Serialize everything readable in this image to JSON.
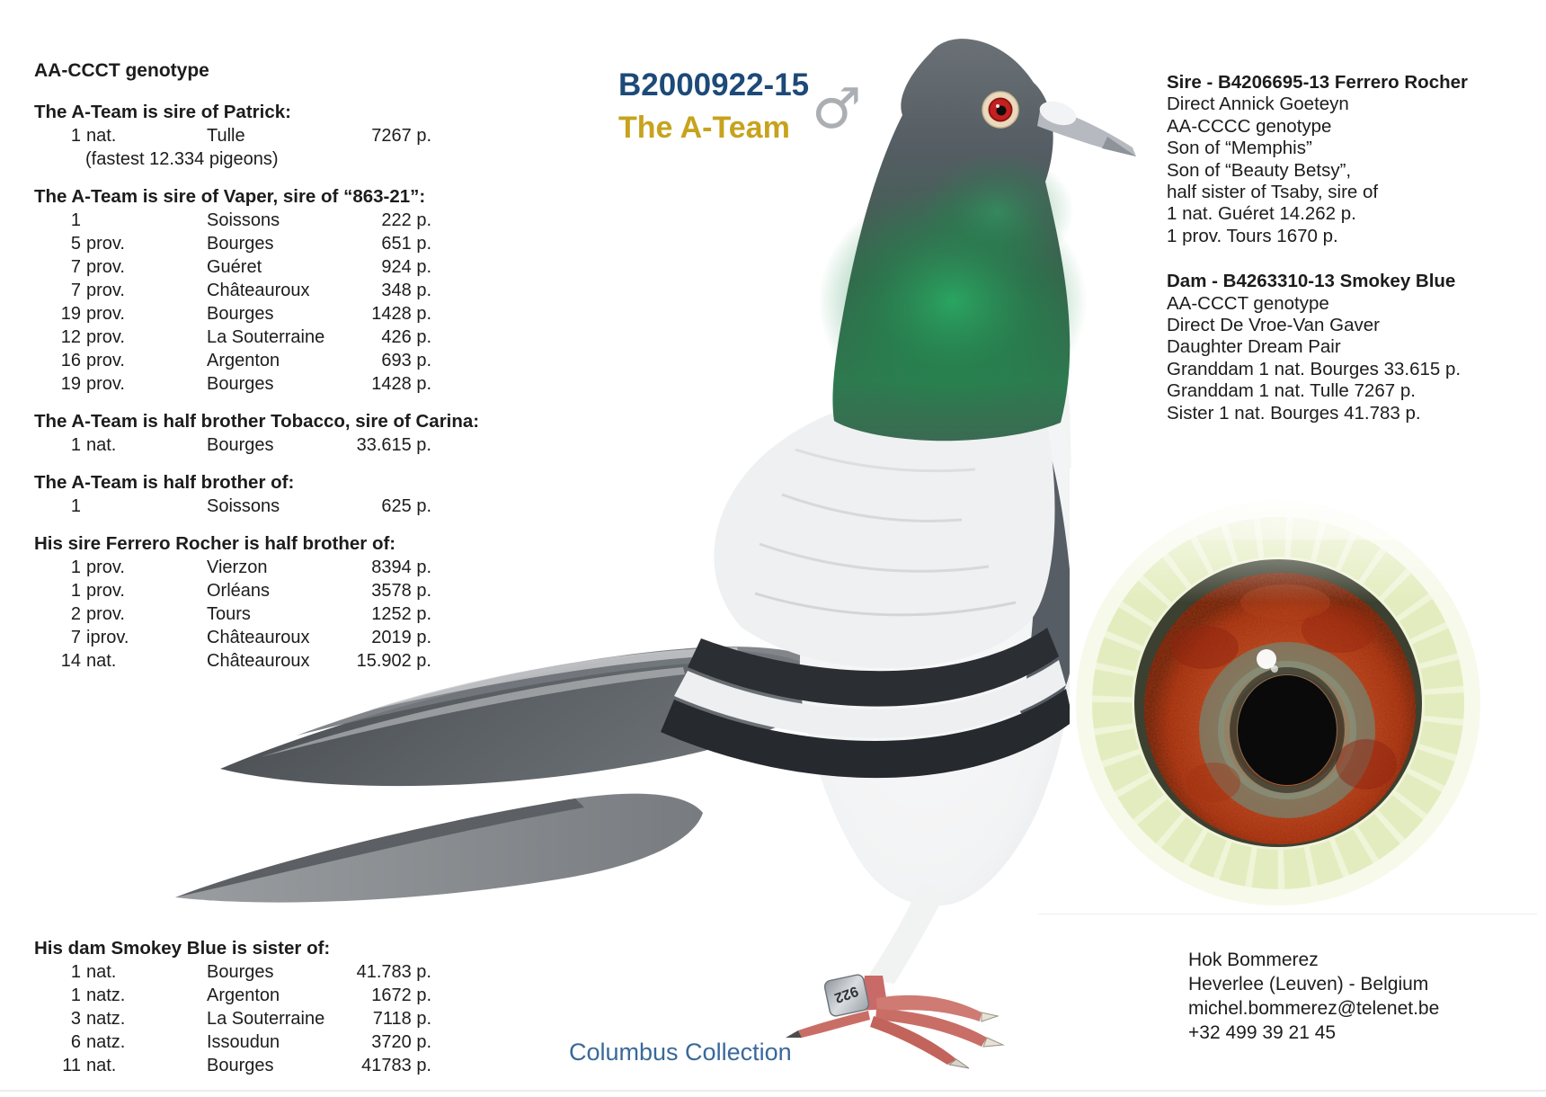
{
  "page": {
    "ring_number": "B2000922-15",
    "name": "The A-Team",
    "sex_symbol": "♂",
    "watermark": "Columbus Collection",
    "colors": {
      "ring_number": "#1d4a78",
      "name": "#c7a31d",
      "watermark": "#38699b",
      "body_text": "#1c1c1c"
    }
  },
  "left_column": {
    "genotype": "AA-CCCT genotype",
    "sections": [
      {
        "heading": "The A-Team is sire of Patrick:",
        "rows": [
          {
            "num": "1",
            "type": "nat.",
            "place": "Tulle",
            "points": "7267 p."
          }
        ],
        "note": "(fastest 12.334 pigeons)"
      },
      {
        "heading": "The A-Team is sire of Vaper, sire of “863-21”:",
        "rows": [
          {
            "num": "1",
            "type": "",
            "place": "Soissons",
            "points": "222 p."
          },
          {
            "num": "5",
            "type": "prov.",
            "place": "Bourges",
            "points": "651 p."
          },
          {
            "num": "7",
            "type": "prov.",
            "place": "Guéret",
            "points": "924 p."
          },
          {
            "num": "7",
            "type": "prov.",
            "place": "Châteauroux",
            "points": "348 p."
          },
          {
            "num": "19",
            "type": "prov.",
            "place": "Bourges",
            "points": "1428 p."
          },
          {
            "num": "12",
            "type": "prov.",
            "place": "La Souterraine",
            "points": "426 p."
          },
          {
            "num": "16",
            "type": "prov.",
            "place": "Argenton",
            "points": "693 p."
          },
          {
            "num": "19",
            "type": "prov.",
            "place": "Bourges",
            "points": "1428 p."
          }
        ]
      },
      {
        "heading": "The A-Team is half brother Tobacco, sire of Carina:",
        "rows": [
          {
            "num": "1",
            "type": "nat.",
            "place": "Bourges",
            "points": "33.615 p."
          }
        ]
      },
      {
        "heading": "The A-Team is half brother of:",
        "rows": [
          {
            "num": "1",
            "type": "",
            "place": "Soissons",
            "points": "625 p."
          }
        ]
      },
      {
        "heading": "His sire Ferrero Rocher is half brother of:",
        "rows": [
          {
            "num": "1",
            "type": "prov.",
            "place": "Vierzon",
            "points": "8394 p."
          },
          {
            "num": "1",
            "type": "prov.",
            "place": "Orléans",
            "points": "3578 p."
          },
          {
            "num": "2",
            "type": "prov.",
            "place": "Tours",
            "points": "1252 p."
          },
          {
            "num": "7",
            "type": "iprov.",
            "place": "Châteauroux",
            "points": "2019 p."
          },
          {
            "num": "14",
            "type": "nat.",
            "place": "Châteauroux",
            "points": "15.902 p."
          }
        ]
      },
      {
        "heading": "His dam Smokey Blue is sister of:",
        "rows": [
          {
            "num": "1",
            "type": "nat.",
            "place": "Bourges",
            "points": "41.783 p."
          },
          {
            "num": "1",
            "type": "natz.",
            "place": "Argenton",
            "points": "1672 p."
          },
          {
            "num": "3",
            "type": "natz.",
            "place": "La Souterraine",
            "points": "7118 p."
          },
          {
            "num": "6",
            "type": "natz.",
            "place": "Issoudun",
            "points": "3720 p."
          },
          {
            "num": "11",
            "type": "nat.",
            "place": "Bourges",
            "points": "41783 p."
          }
        ]
      }
    ]
  },
  "right_column": {
    "sire": {
      "heading": "Sire - B4206695-13 Ferrero Rocher",
      "lines": [
        "Direct Annick Goeteyn",
        "AA-CCCC genotype",
        "Son of “Memphis”",
        "Son of “Beauty Betsy”,",
        "half sister of Tsaby, sire of",
        "1 nat. Guéret 14.262 p.",
        "1 prov. Tours 1670 p."
      ]
    },
    "dam": {
      "heading": "Dam - B4263310-13 Smokey Blue",
      "lines": [
        "AA-CCCT genotype",
        "Direct De Vroe-Van Gaver",
        "Daughter Dream Pair",
        "Granddam 1 nat. Bourges 33.615 p.",
        "Granddam 1 nat. Tulle 7267 p.",
        "Sister 1 nat. Bourges 41.783 p."
      ]
    },
    "contact": {
      "lines": [
        "Hok Bommerez",
        "Heverlee (Leuven) - Belgium",
        "michel.bommerez@telenet.be",
        "+32 499 39 21 45"
      ]
    }
  },
  "pigeon": {
    "leg_band": "922"
  }
}
